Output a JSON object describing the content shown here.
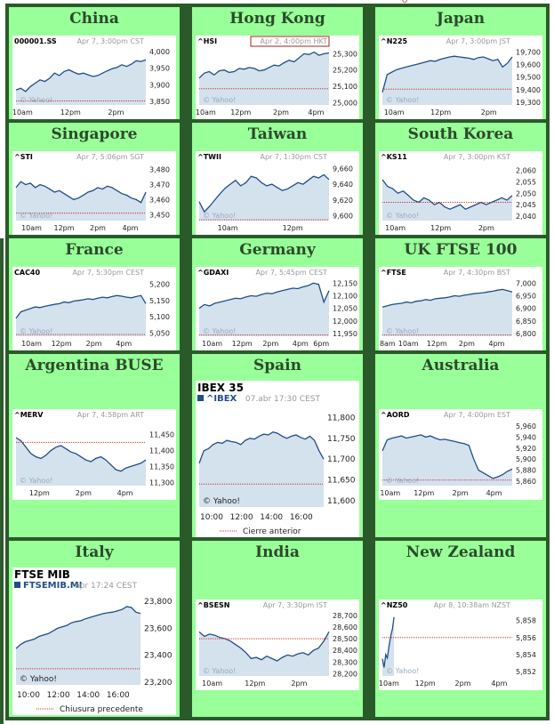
{
  "header_fragment": "Q",
  "colors": {
    "cell_bg": "#99ff99",
    "title": "#2b4a2b",
    "grid_border": "#2a5a2a",
    "line": "#1f4e86",
    "fill": "#d4e2ee",
    "prev_close": "#cc3333",
    "axis_text": "#222222",
    "header_text": "#999999"
  },
  "yahoo_label": "© Yahoo!",
  "chart_data": [
    {
      "type": "line",
      "title": "China",
      "symbol": "000001.SS",
      "timestamp": "Apr 7, 3:00pm CST",
      "variant": "yahoo",
      "yticks": [
        4000,
        3950,
        3900,
        3850
      ],
      "ylim": [
        3840,
        4010
      ],
      "prev_close": 3852,
      "xtick_labels": [
        "10am",
        "12pm",
        "2pm"
      ],
      "xticks": [
        0.05,
        0.42,
        0.77
      ],
      "series": [
        {
          "values": [
            3885,
            3890,
            3880,
            3895,
            3905,
            3915,
            3910,
            3920,
            3935,
            3928,
            3940,
            3945,
            3938,
            3932,
            3935,
            3930,
            3925,
            3928,
            3935,
            3942,
            3948,
            3952,
            3960,
            3955,
            3962,
            3972,
            3970,
            3975
          ]
        }
      ]
    },
    {
      "type": "line",
      "title": "Hong Kong",
      "symbol": "^HSI",
      "timestamp": "Apr 2, 4:00pm HKT",
      "variant": "yahoo",
      "highlight_timestamp": true,
      "yticks": [
        25300,
        25200,
        25100,
        25000
      ],
      "ylim": [
        24985,
        25335
      ],
      "prev_close": 25085,
      "xtick_labels": [
        "10am",
        "12pm",
        "2pm",
        "4pm"
      ],
      "xticks": [
        0.05,
        0.32,
        0.63,
        0.9
      ],
      "series": [
        {
          "values": [
            25150,
            25180,
            25190,
            25170,
            25195,
            25200,
            25185,
            25190,
            25210,
            25205,
            25215,
            25210,
            25195,
            25200,
            25215,
            25230,
            25225,
            25245,
            25260,
            25250,
            25275,
            25300,
            25295,
            25310,
            25290,
            25300,
            25305
          ]
        }
      ]
    },
    {
      "type": "line",
      "title": "Japan",
      "symbol": "^N225",
      "timestamp": "Apr 7, 3:00pm JST",
      "variant": "yahoo",
      "yticks": [
        19700,
        19600,
        19500,
        19400,
        19300
      ],
      "ylim": [
        19280,
        19730
      ],
      "prev_close": 19405,
      "xtick_labels": [
        "10am",
        "12pm",
        "2pm"
      ],
      "xticks": [
        0.09,
        0.45,
        0.82
      ],
      "series": [
        {
          "values": [
            19380,
            19520,
            19540,
            19560,
            19570,
            19580,
            19590,
            19600,
            19610,
            19620,
            19630,
            19625,
            19640,
            19650,
            19660,
            19665,
            19660,
            19655,
            19650,
            19640,
            19655,
            19660,
            19645,
            19630,
            19640,
            19580,
            19610,
            19660
          ]
        }
      ]
    },
    {
      "type": "line",
      "title": "Singapore",
      "symbol": "^STI",
      "timestamp": "Apr 7, 5:06pm SGT",
      "variant": "yahoo",
      "yticks": [
        3480,
        3470,
        3460,
        3450
      ],
      "ylim": [
        3446,
        3484
      ],
      "prev_close": 3451,
      "xtick_labels": [
        "10am",
        "12pm",
        "2pm",
        "4pm"
      ],
      "xticks": [
        0.12,
        0.37,
        0.63,
        0.88
      ],
      "series": [
        {
          "values": [
            3468,
            3472,
            3470,
            3471,
            3468,
            3470,
            3469,
            3467,
            3465,
            3466,
            3464,
            3462,
            3460,
            3461,
            3463,
            3465,
            3466,
            3468,
            3467,
            3469,
            3468,
            3466,
            3464,
            3463,
            3461,
            3460,
            3458,
            3465
          ]
        }
      ]
    },
    {
      "type": "line",
      "title": "Taiwan",
      "symbol": "^TWII",
      "timestamp": "Apr 7, 1:30pm CST",
      "variant": "yahoo",
      "yticks": [
        9660,
        9640,
        9620,
        9600
      ],
      "ylim": [
        9594,
        9666
      ],
      "prev_close": 9595,
      "xtick_labels": [
        "10am",
        "12pm"
      ],
      "xticks": [
        0.22,
        0.72
      ],
      "series": [
        {
          "values": [
            9618,
            9605,
            9612,
            9620,
            9628,
            9635,
            9640,
            9645,
            9638,
            9642,
            9650,
            9648,
            9642,
            9638,
            9640,
            9636,
            9632,
            9634,
            9638,
            9642,
            9640,
            9645,
            9650,
            9648,
            9652,
            9646
          ]
        }
      ]
    },
    {
      "type": "line",
      "title": "South Korea",
      "symbol": "^KS11",
      "timestamp": "Apr 7, 3:00pm KST",
      "variant": "yahoo",
      "yticks": [
        2060,
        2055,
        2050,
        2045,
        2040
      ],
      "ylim": [
        2038,
        2063
      ],
      "prev_close": 2046,
      "xtick_labels": [
        "10am",
        "12pm",
        "2pm"
      ],
      "xticks": [
        0.1,
        0.45,
        0.8
      ],
      "series": [
        {
          "values": [
            2056,
            2053,
            2052,
            2050,
            2051,
            2049,
            2047,
            2046,
            2048,
            2047,
            2045,
            2046,
            2044,
            2043,
            2044,
            2045,
            2043,
            2044,
            2045,
            2046,
            2045,
            2046,
            2047,
            2048,
            2047,
            2049
          ]
        }
      ]
    },
    {
      "type": "line",
      "title": "France",
      "symbol": "CAC40",
      "timestamp": "Apr 7, 5:30pm CEST",
      "variant": "yahoo",
      "yticks": [
        5200,
        5150,
        5100,
        5050
      ],
      "ylim": [
        5040,
        5215
      ],
      "prev_close": 5045,
      "xtick_labels": [
        "10am",
        "12pm",
        "2pm",
        "4pm"
      ],
      "xticks": [
        0.12,
        0.35,
        0.6,
        0.83
      ],
      "series": [
        {
          "values": [
            5095,
            5115,
            5120,
            5125,
            5130,
            5128,
            5132,
            5135,
            5138,
            5140,
            5145,
            5143,
            5148,
            5150,
            5152,
            5155,
            5153,
            5157,
            5160,
            5158,
            5162,
            5165,
            5163,
            5160,
            5158,
            5162,
            5165,
            5140
          ]
        }
      ]
    },
    {
      "type": "line",
      "title": "Germany",
      "symbol": "^GDAXI",
      "timestamp": "Apr 7, 5:45pm CEST",
      "variant": "yahoo",
      "yticks": [
        12150,
        12100,
        12050,
        12000,
        11950
      ],
      "ylim": [
        11940,
        12165
      ],
      "prev_close": 11945,
      "xtick_labels": [
        "10am",
        "12pm",
        "2pm",
        "4pm",
        "6pm"
      ],
      "xticks": [
        0.1,
        0.33,
        0.55,
        0.78,
        0.94
      ],
      "series": [
        {
          "values": [
            12050,
            12065,
            12060,
            12070,
            12075,
            12080,
            12085,
            12090,
            12088,
            12095,
            12100,
            12098,
            12105,
            12110,
            12108,
            12115,
            12120,
            12125,
            12130,
            12128,
            12135,
            12140,
            12150,
            12145,
            12075,
            12120
          ]
        }
      ]
    },
    {
      "type": "line",
      "title": "UK FTSE 100",
      "symbol": "^FTSE",
      "timestamp": "Apr 7, 4:30pm BST",
      "variant": "yahoo",
      "yticks": [
        7000,
        6950,
        6900,
        6850,
        6800
      ],
      "ylim": [
        6790,
        7015
      ],
      "prev_close": 6795,
      "xtick_labels": [
        "8am",
        "10am",
        "12pm",
        "2pm",
        "4pm"
      ],
      "xticks": [
        0.04,
        0.2,
        0.42,
        0.65,
        0.88
      ],
      "series": [
        {
          "values": [
            6905,
            6910,
            6915,
            6918,
            6920,
            6925,
            6922,
            6928,
            6930,
            6935,
            6932,
            6938,
            6940,
            6942,
            6945,
            6950,
            6948,
            6952,
            6955,
            6958,
            6960,
            6962,
            6965,
            6968,
            6972,
            6975,
            6970,
            6965
          ]
        }
      ]
    },
    {
      "type": "line",
      "title": "Argentina BUSE",
      "symbol": "^MERV",
      "timestamp": "Apr 7, 4:58pm ART",
      "variant": "yahoo",
      "yticks": [
        11450,
        11400,
        11350,
        11300
      ],
      "ylim": [
        11290,
        11490
      ],
      "prev_close": 11425,
      "xtick_labels": [
        "12pm",
        "2pm",
        "4pm"
      ],
      "xticks": [
        0.18,
        0.52,
        0.84
      ],
      "series": [
        {
          "values": [
            11440,
            11430,
            11410,
            11390,
            11380,
            11375,
            11385,
            11400,
            11410,
            11415,
            11405,
            11395,
            11390,
            11380,
            11370,
            11365,
            11375,
            11380,
            11370,
            11355,
            11340,
            11335,
            11345,
            11350,
            11355,
            11360,
            11370
          ]
        }
      ]
    },
    {
      "type": "line",
      "title": "Spain",
      "heading": "IBEX 35",
      "symbol": "^IBEX",
      "timestamp": "07.abr 17:30 CEST",
      "variant": "lang",
      "legend": "Cierre anterior",
      "yticks": [
        11800,
        11750,
        11700,
        11650,
        11600
      ],
      "ylim": [
        11585,
        11820
      ],
      "prev_close": 11640,
      "xtick_labels": [
        "10:00",
        "12:00",
        "14:00",
        "16:00"
      ],
      "xticks": [
        0.1,
        0.34,
        0.58,
        0.82
      ],
      "series": [
        {
          "values": [
            11690,
            11720,
            11725,
            11735,
            11740,
            11738,
            11745,
            11742,
            11740,
            11735,
            11745,
            11750,
            11748,
            11755,
            11760,
            11758,
            11765,
            11762,
            11755,
            11750,
            11755,
            11758,
            11752,
            11748,
            11755,
            11745,
            11720,
            11700
          ]
        }
      ]
    },
    {
      "type": "line",
      "title": "Australia",
      "symbol": "^AORD",
      "timestamp": "Apr 7, 4:00pm EST",
      "variant": "yahoo",
      "yticks": [
        5960,
        5940,
        5920,
        5900,
        5880,
        5860
      ],
      "ylim": [
        5852,
        5968
      ],
      "prev_close": 5862,
      "xtick_labels": [
        "10am",
        "12pm",
        "2pm",
        "4pm"
      ],
      "xticks": [
        0.06,
        0.32,
        0.6,
        0.86
      ],
      "series": [
        {
          "values": [
            5915,
            5935,
            5938,
            5940,
            5942,
            5938,
            5940,
            5942,
            5944,
            5940,
            5942,
            5938,
            5935,
            5936,
            5934,
            5932,
            5930,
            5928,
            5925,
            5900,
            5880,
            5875,
            5870,
            5865,
            5868,
            5872,
            5878,
            5882
          ]
        }
      ]
    },
    {
      "type": "line",
      "title": "Italy",
      "heading": "FTSE MIB",
      "symbol": "FTSEMIB.MI",
      "timestamp": "apr 17:24 CEST",
      "variant": "lang",
      "legend": "Chiusura precedente",
      "yticks": [
        23800,
        23600,
        23400,
        23200
      ],
      "ylim": [
        23180,
        23840
      ],
      "prev_close": 23300,
      "xtick_labels": [
        "10:00",
        "12:00",
        "14:00",
        "16:00"
      ],
      "xticks": [
        0.1,
        0.34,
        0.58,
        0.82
      ],
      "series": [
        {
          "values": [
            23450,
            23480,
            23500,
            23510,
            23520,
            23540,
            23550,
            23560,
            23580,
            23600,
            23610,
            23620,
            23640,
            23650,
            23655,
            23670,
            23680,
            23690,
            23700,
            23710,
            23715,
            23720,
            23730,
            23740,
            23760,
            23755,
            23720,
            23710
          ]
        }
      ]
    },
    {
      "type": "line",
      "title": "India",
      "symbol": "^BSESN",
      "timestamp": "Apr 7, 3:30pm IST",
      "variant": "yahoo",
      "yticks": [
        28700,
        28600,
        28500,
        28400,
        28300,
        28200
      ],
      "ylim": [
        28180,
        28730
      ],
      "prev_close": 28500,
      "xtick_labels": [
        "10am",
        "12pm",
        "2pm"
      ],
      "xticks": [
        0.1,
        0.43,
        0.77
      ],
      "series": [
        {
          "values": [
            28560,
            28520,
            28540,
            28530,
            28510,
            28500,
            28480,
            28450,
            28420,
            28380,
            28330,
            28340,
            28320,
            28350,
            28330,
            28310,
            28340,
            28360,
            28350,
            28370,
            28380,
            28360,
            28400,
            28420,
            28480,
            28560
          ]
        }
      ]
    },
    {
      "type": "line",
      "title": "New Zealand",
      "symbol": "^NZ50",
      "timestamp": "Apr 8, 10:38am NZST",
      "variant": "yahoo",
      "yticks": [
        5858,
        5856,
        5854,
        5852
      ],
      "ylim": [
        5851.5,
        5859
      ],
      "prev_close": 5856,
      "xtick_labels": [
        "10am",
        "12pm",
        "2pm",
        "4pm"
      ],
      "xticks": [
        0.05,
        0.33,
        0.62,
        0.9
      ],
      "series": [
        {
          "values": [
            5853.5,
            5852.5,
            5854,
            5853.6,
            5855,
            5856.2,
            5857,
            5858.4
          ],
          "x_end": 0.09
        }
      ]
    }
  ]
}
